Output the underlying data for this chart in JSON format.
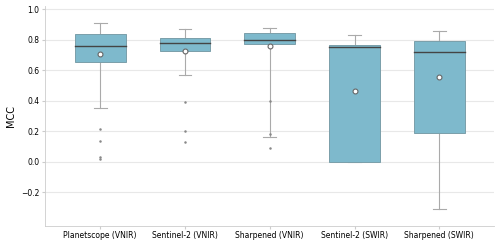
{
  "categories": [
    "Planetscope (VNIR)",
    "Sentinel-2 (VNIR)",
    "Sharpened (VNIR)",
    "Sentinel-2 (SWIR)",
    "Sharpened (SWIR)"
  ],
  "box_color": "#7eb9cc",
  "box_edge_color": "#7a9faa",
  "whisker_color": "#aaaaaa",
  "median_color": "#444444",
  "mean_color": "white",
  "mean_edge_color": "#666666",
  "outlier_color": "#888888",
  "ylim": [
    -0.42,
    1.02
  ],
  "yticks": [
    -0.2,
    0.0,
    0.2,
    0.4,
    0.6,
    0.8,
    1.0
  ],
  "ylabel": "MCC",
  "background_color": "#ffffff",
  "grid_color": "#e8e8e8",
  "boxes": [
    {
      "q1": 0.655,
      "median": 0.763,
      "q3": 0.84,
      "mean": 0.706,
      "whisker_low": 0.353,
      "whisker_high": 0.908,
      "outliers": [
        0.215,
        0.14,
        0.03,
        0.02
      ]
    },
    {
      "q1": 0.727,
      "median": 0.783,
      "q3": 0.813,
      "mean": 0.727,
      "whisker_low": 0.571,
      "whisker_high": 0.872,
      "outliers": [
        0.39,
        0.2,
        0.13
      ]
    },
    {
      "q1": 0.775,
      "median": 0.8,
      "q3": 0.843,
      "mean": 0.762,
      "whisker_low": 0.16,
      "whisker_high": 0.879,
      "outliers": [
        0.4,
        0.18,
        0.09
      ]
    },
    {
      "q1": 0.001,
      "median": 0.752,
      "q3": 0.766,
      "mean": 0.468,
      "whisker_low": 0.001,
      "whisker_high": 0.832,
      "outliers": []
    },
    {
      "q1": 0.19,
      "median": 0.718,
      "q3": 0.792,
      "mean": 0.558,
      "whisker_low": -0.31,
      "whisker_high": 0.862,
      "outliers": []
    }
  ]
}
